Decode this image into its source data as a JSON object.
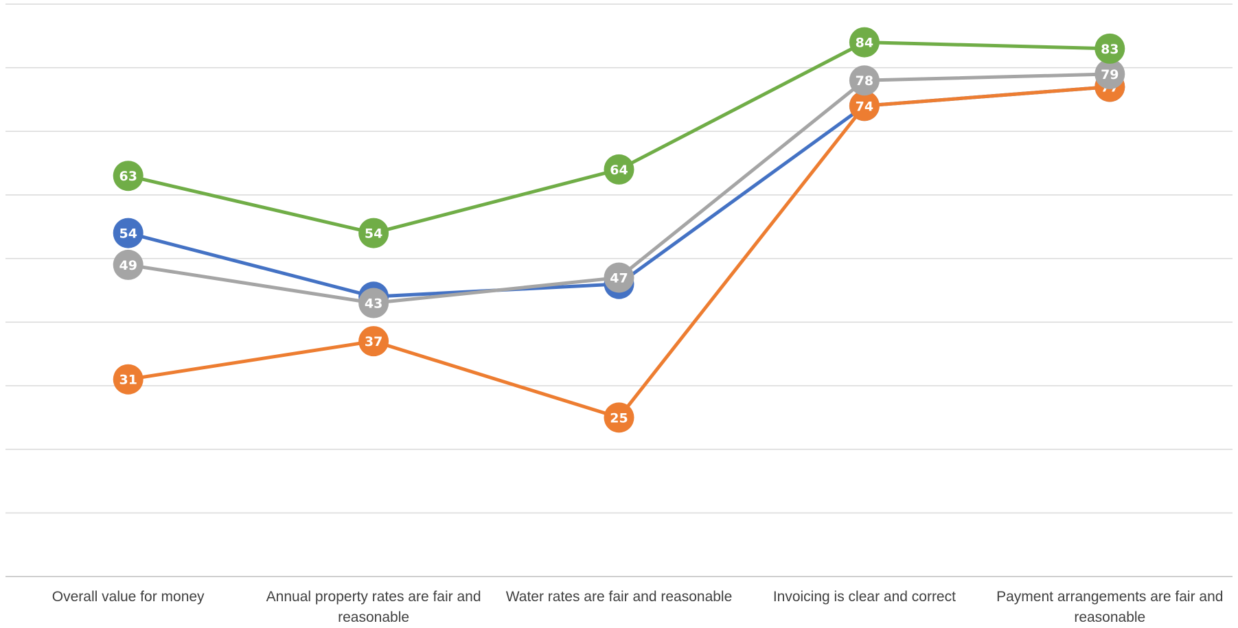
{
  "chart_data": {
    "type": "line",
    "title": "",
    "xlabel": "",
    "ylabel": "",
    "ylim": [
      0,
      90
    ],
    "grid": true,
    "legend": "none",
    "categories": [
      "Overall value for money",
      "Annual property rates are fair and reasonable",
      "Water rates are fair and reasonable",
      "Invoicing is clear and correct",
      "Payment arrangements are fair and reasonable"
    ],
    "series": [
      {
        "color": "#4472C4",
        "values": [
          54,
          44,
          46,
          74,
          77
        ]
      },
      {
        "color": "#ED7D31",
        "values": [
          31,
          37,
          25,
          74,
          77
        ]
      },
      {
        "color": "#A5A5A5",
        "values": [
          49,
          43,
          47,
          78,
          79
        ]
      },
      {
        "color": "#70AD47",
        "values": [
          63,
          54,
          64,
          84,
          83
        ]
      }
    ]
  }
}
